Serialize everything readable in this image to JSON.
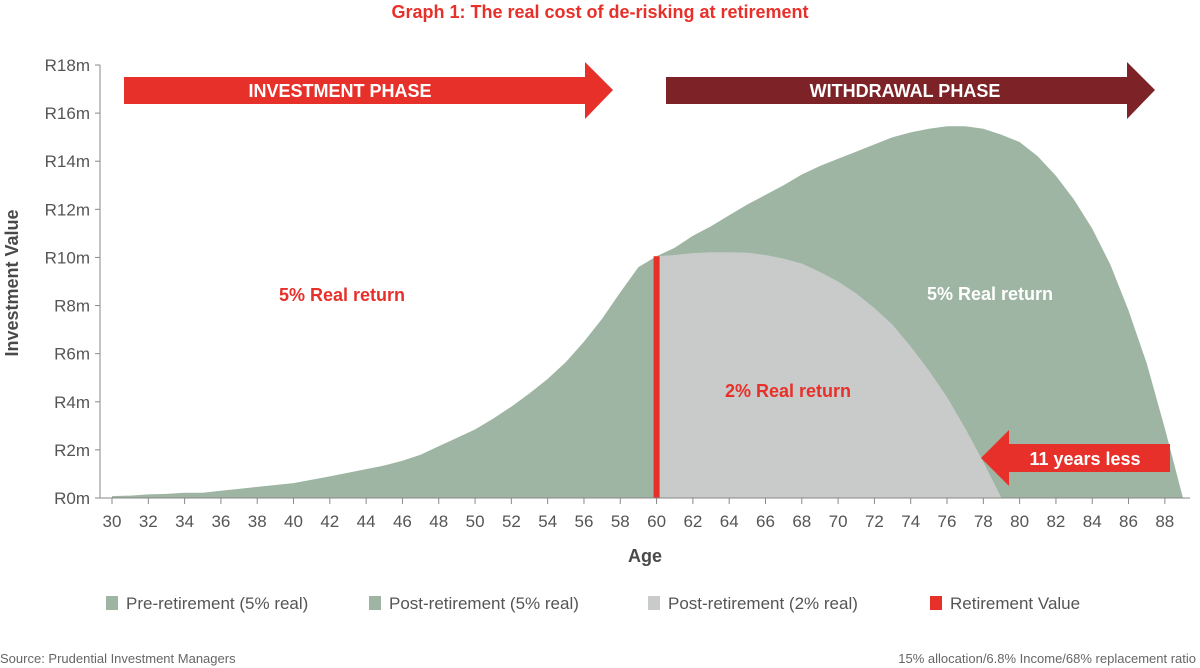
{
  "chart_data": {
    "type": "area",
    "title": "Graph 1: The real cost of de-risking at retirement",
    "xlabel": "Age",
    "ylabel": "Investment Value",
    "xlim": [
      30,
      89
    ],
    "ylim": [
      0,
      18
    ],
    "x_ticks": [
      "30",
      "32",
      "34",
      "36",
      "38",
      "40",
      "42",
      "44",
      "46",
      "48",
      "50",
      "52",
      "54",
      "56",
      "58",
      "60",
      "62",
      "64",
      "66",
      "68",
      "70",
      "72",
      "74",
      "76",
      "78",
      "80",
      "82",
      "84",
      "86",
      "88"
    ],
    "y_ticks": [
      {
        "value": 0,
        "label": "R0m"
      },
      {
        "value": 2,
        "label": "R2m"
      },
      {
        "value": 4,
        "label": "R4m"
      },
      {
        "value": 6,
        "label": "R6m"
      },
      {
        "value": 8,
        "label": "R8m"
      },
      {
        "value": 10,
        "label": "R10m"
      },
      {
        "value": 12,
        "label": "R12m"
      },
      {
        "value": 14,
        "label": "R14m"
      },
      {
        "value": 16,
        "label": "R16m"
      },
      {
        "value": 18,
        "label": "R18m"
      }
    ],
    "series": [
      {
        "name": "Pre-retirement (5% real)",
        "color": "#9db5a2",
        "x": [
          30,
          31,
          32,
          33,
          34,
          35,
          36,
          37,
          38,
          39,
          40,
          41,
          42,
          43,
          44,
          45,
          46,
          47,
          48,
          49,
          50,
          51,
          52,
          53,
          54,
          55,
          56,
          57,
          58,
          59,
          60
        ],
        "values": [
          0.08,
          0.1,
          0.15,
          0.17,
          0.22,
          0.22,
          0.3,
          0.38,
          0.46,
          0.54,
          0.62,
          0.76,
          0.9,
          1.05,
          1.2,
          1.35,
          1.55,
          1.8,
          2.15,
          2.5,
          2.85,
          3.3,
          3.8,
          4.35,
          4.95,
          5.65,
          6.5,
          7.45,
          8.55,
          9.6,
          10.05
        ]
      },
      {
        "name": "Post-retirement (5% real)",
        "color": "#9db5a2",
        "x": [
          60,
          61,
          62,
          63,
          64,
          65,
          66,
          67,
          68,
          69,
          70,
          71,
          72,
          73,
          74,
          75,
          76,
          77,
          78,
          79,
          80,
          81,
          82,
          83,
          84,
          85,
          86,
          87,
          88,
          89
        ],
        "values": [
          10.05,
          10.4,
          10.9,
          11.3,
          11.75,
          12.2,
          12.6,
          13.0,
          13.45,
          13.8,
          14.1,
          14.4,
          14.7,
          15.0,
          15.2,
          15.35,
          15.45,
          15.45,
          15.35,
          15.1,
          14.8,
          14.2,
          13.4,
          12.4,
          11.2,
          9.7,
          7.8,
          5.6,
          2.9,
          0
        ]
      },
      {
        "name": "Post-retirement (2% real)",
        "color": "#c8cbc9",
        "x": [
          60,
          61,
          62,
          63,
          64,
          65,
          66,
          67,
          68,
          69,
          70,
          71,
          72,
          73,
          74,
          75,
          76,
          77,
          78,
          79
        ],
        "values": [
          10.05,
          10.1,
          10.18,
          10.22,
          10.22,
          10.2,
          10.1,
          9.95,
          9.75,
          9.4,
          9.0,
          8.5,
          7.9,
          7.2,
          6.3,
          5.3,
          4.2,
          2.9,
          1.5,
          0
        ]
      }
    ],
    "markers": [
      {
        "name": "Retirement Value",
        "type": "vline",
        "x": 60,
        "value": 10.05,
        "color": "#e8302a"
      }
    ],
    "annotations": {
      "investment_phase": "INVESTMENT PHASE",
      "withdrawal_phase": "WITHDRAWAL PHASE",
      "pre_return": "5% Real return",
      "post_return": "5% Real return",
      "derisk_return": "2% Real return",
      "years_less": "11 years less"
    },
    "legend": {
      "placement": "bottom",
      "items": [
        {
          "label": "Pre-retirement (5% real)",
          "color": "#9db5a2"
        },
        {
          "label": "Post-retirement (5% real)",
          "color": "#9db5a2"
        },
        {
          "label": "Post-retirement (2% real)",
          "color": "#c8cbc9"
        },
        {
          "label": "Retirement Value",
          "color": "#e8302a"
        }
      ]
    },
    "grid": false
  },
  "footer": {
    "source": "Source: Prudential Investment Managers",
    "note": "15% allocation/6.8% Income/68% replacement ratio"
  },
  "colors": {
    "accent_red": "#e8302a",
    "withdrawal_dark": "#7d2226",
    "green_area": "#9db5a2",
    "grey_area": "#c8cbc9"
  }
}
